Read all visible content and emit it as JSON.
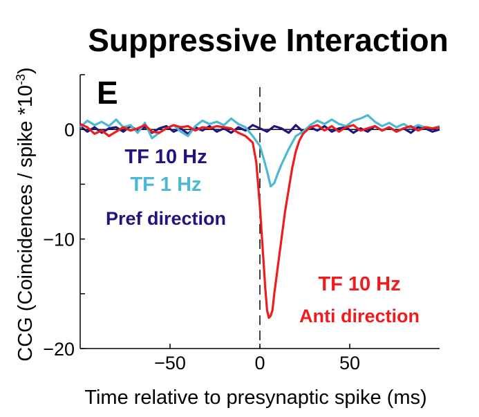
{
  "chart_data": {
    "type": "line",
    "title": "Suppressive Interaction",
    "panel_label": "E",
    "xlabel": "Time relative to presynaptic spike (ms)",
    "ylabel": "CCG (Coincidences / spike  *10",
    "ylabel_exponent": "-3",
    "ylabel_close": ")",
    "xlim": [
      -100,
      100
    ],
    "ylim": [
      -20,
      5
    ],
    "xticks": [
      -50,
      0,
      50
    ],
    "xtick_labels": [
      "−50",
      "0",
      "50"
    ],
    "yticks": [
      -20,
      -10,
      0
    ],
    "ytick_labels": [
      "−20",
      "−10",
      "0"
    ],
    "zero_line": true,
    "vertical_dashed_line_x": 0,
    "grid": false,
    "legend_groups": [
      {
        "lines": [
          {
            "text": "TF 10 Hz",
            "color": "#1f1480",
            "style": "big"
          },
          {
            "text": "TF 1 Hz",
            "color": "#4bb8d4",
            "style": "big"
          },
          {
            "text": "Pref direction",
            "color": "#1f1480",
            "style": "small"
          }
        ],
        "placement": "left-middle"
      },
      {
        "lines": [
          {
            "text": "TF 10 Hz",
            "color": "#ee1c1c",
            "style": "big"
          },
          {
            "text": "Anti direction",
            "color": "#ee1c1c",
            "style": "small"
          }
        ],
        "placement": "bottom-right"
      }
    ],
    "series": [
      {
        "color": "#1f1480",
        "x": [
          -100,
          -96,
          -92,
          -88,
          -84,
          -80,
          -76,
          -72,
          -68,
          -64,
          -60,
          -56,
          -52,
          -48,
          -44,
          -40,
          -36,
          -32,
          -28,
          -24,
          -20,
          -16,
          -12,
          -8,
          -4,
          0,
          4,
          8,
          12,
          16,
          20,
          24,
          28,
          32,
          36,
          40,
          44,
          48,
          52,
          56,
          60,
          64,
          68,
          72,
          76,
          80,
          84,
          88,
          92,
          96,
          100
        ],
        "y": [
          0.3,
          -0.2,
          0.2,
          -0.3,
          0.1,
          0.2,
          -0.2,
          0.3,
          -0.1,
          0.2,
          -0.3,
          0.1,
          0.3,
          -0.2,
          0.1,
          -0.4,
          0.2,
          -0.1,
          0.3,
          -0.2,
          0.1,
          -0.3,
          0.2,
          -0.1,
          0.4,
          0.1,
          -0.2,
          0.3,
          0.1,
          -0.3,
          0.4,
          -0.2,
          0.2,
          -0.1,
          0.3,
          -0.2,
          0.1,
          0.2,
          -0.3,
          0.1,
          -0.2,
          0.3,
          -0.1,
          0.2,
          -0.2,
          0.1,
          -0.3,
          0.2,
          0.1,
          -0.2,
          0.0
        ]
      },
      {
        "color": "#4bb8d4",
        "x": [
          -100,
          -96,
          -92,
          -88,
          -84,
          -80,
          -76,
          -72,
          -68,
          -64,
          -60,
          -56,
          -52,
          -48,
          -44,
          -40,
          -36,
          -32,
          -28,
          -24,
          -20,
          -16,
          -12,
          -8,
          -4,
          0,
          2,
          4,
          6,
          8,
          10,
          12,
          14,
          16,
          18,
          20,
          24,
          28,
          32,
          36,
          40,
          44,
          48,
          52,
          56,
          60,
          64,
          68,
          72,
          76,
          80,
          84,
          88,
          92,
          96,
          100
        ],
        "y": [
          0.2,
          0.8,
          0.4,
          0.7,
          0.3,
          0.9,
          0.2,
          0.4,
          -0.3,
          0.6,
          -0.8,
          -0.3,
          0.1,
          0.4,
          -0.2,
          -0.6,
          0.3,
          0.8,
          0.5,
          0.7,
          0.4,
          1.0,
          0.5,
          0.2,
          -0.6,
          -1.5,
          -2.6,
          -3.8,
          -5.2,
          -4.9,
          -4.0,
          -3.2,
          -2.5,
          -1.8,
          -1.2,
          -0.6,
          -0.2,
          0.4,
          0.8,
          0.5,
          0.9,
          0.5,
          0.3,
          0.8,
          1.0,
          1.3,
          0.7,
          0.3,
          0.6,
          0.2,
          0.5,
          0.1,
          0.4,
          0.2,
          0.1,
          0.3
        ]
      },
      {
        "color": "#ee1c1c",
        "x": [
          -100,
          -96,
          -92,
          -88,
          -84,
          -80,
          -76,
          -72,
          -68,
          -64,
          -60,
          -56,
          -52,
          -48,
          -44,
          -40,
          -36,
          -32,
          -28,
          -24,
          -20,
          -16,
          -12,
          -8,
          -4,
          -2,
          0,
          2,
          3,
          4,
          5,
          6,
          7,
          8,
          10,
          12,
          14,
          16,
          18,
          20,
          22,
          24,
          28,
          32,
          36,
          40,
          44,
          48,
          52,
          56,
          60,
          64,
          68,
          72,
          76,
          80,
          84,
          88,
          92,
          96,
          100
        ],
        "y": [
          0.5,
          0.2,
          -0.4,
          -0.1,
          -0.6,
          -0.2,
          0.2,
          -0.1,
          0.1,
          0.4,
          -0.2,
          -0.3,
          0.1,
          0.4,
          0.2,
          0.3,
          -0.1,
          0.2,
          0.1,
          0.3,
          0.2,
          0.1,
          -0.3,
          -0.6,
          -1.2,
          -3.0,
          -7.0,
          -12.0,
          -14.5,
          -16.5,
          -17.2,
          -17.0,
          -16.5,
          -15.0,
          -12.5,
          -10.0,
          -7.5,
          -5.5,
          -3.5,
          -2.0,
          -1.0,
          -0.4,
          0.2,
          0.4,
          -0.1,
          0.3,
          -0.2,
          0.2,
          0.4,
          -0.1,
          0.1,
          0.3,
          -0.1,
          0.2,
          -0.2,
          0.1,
          0.3,
          -0.1,
          0.2,
          0.1,
          0.2
        ]
      }
    ]
  }
}
